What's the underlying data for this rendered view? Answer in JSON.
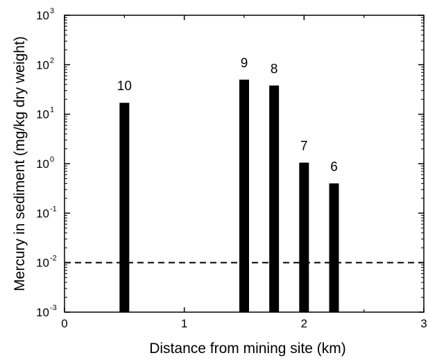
{
  "chart_data": {
    "type": "bar",
    "title": "",
    "xlabel": "Distance from mining site (km)",
    "ylabel": "Mercury in sediment (mg/kg dry weight)",
    "xlim": [
      0,
      3
    ],
    "ylim": [
      0.001,
      1000
    ],
    "yscale": "log",
    "xticks": [
      "0",
      "1",
      "2",
      "3"
    ],
    "yticks": [
      {
        "base": "10",
        "exp": "-3"
      },
      {
        "base": "10",
        "exp": "-2"
      },
      {
        "base": "10",
        "exp": "-1"
      },
      {
        "base": "10",
        "exp": "0"
      },
      {
        "base": "10",
        "exp": "1"
      },
      {
        "base": "10",
        "exp": "2"
      },
      {
        "base": "10",
        "exp": "3"
      }
    ],
    "bars": [
      {
        "x": 0.5,
        "value": 17,
        "label": "10"
      },
      {
        "x": 1.5,
        "value": 50,
        "label": "9"
      },
      {
        "x": 1.75,
        "value": 38,
        "label": "8"
      },
      {
        "x": 2.0,
        "value": 1.05,
        "label": "7"
      },
      {
        "x": 2.25,
        "value": 0.4,
        "label": "6"
      }
    ],
    "reference_line": {
      "y": 0.01,
      "style": "dashed"
    },
    "grid": false,
    "bar_color": "#000000"
  }
}
